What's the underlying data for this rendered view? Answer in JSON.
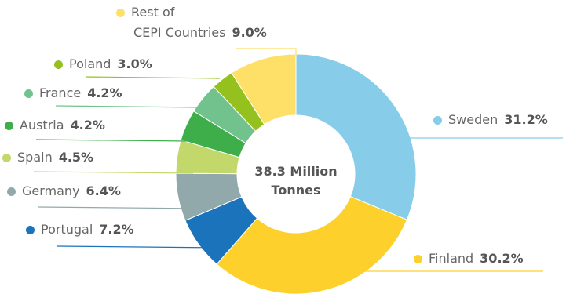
{
  "chart_data": {
    "type": "pie",
    "donut": true,
    "center_label": [
      "38.3 Million",
      "Tonnes"
    ],
    "slices": [
      {
        "name": "Sweden",
        "value": 31.2,
        "label": "31.2%",
        "color": "#87CDEA"
      },
      {
        "name": "Finland",
        "value": 30.2,
        "label": "30.2%",
        "color": "#FDD02C"
      },
      {
        "name": "Portugal",
        "value": 7.2,
        "label": "7.2%",
        "color": "#1A73BB"
      },
      {
        "name": "Germany",
        "value": 6.4,
        "label": "6.4%",
        "color": "#92A9AB"
      },
      {
        "name": "Spain",
        "value": 4.5,
        "label": "4.5%",
        "color": "#C3D86B"
      },
      {
        "name": "Austria",
        "value": 4.2,
        "label": "4.2%",
        "color": "#3DAE49"
      },
      {
        "name": "France",
        "value": 4.2,
        "label": "4.2%",
        "color": "#72C28E"
      },
      {
        "name": "Poland",
        "value": 3.0,
        "label": "3.0%",
        "color": "#95C11F"
      },
      {
        "name": "Rest of CEPI Countries",
        "name_lines": [
          "Rest of",
          "CEPI Countries"
        ],
        "value": 9.0,
        "label": "9.0%",
        "color": "#FEDF68"
      }
    ]
  }
}
